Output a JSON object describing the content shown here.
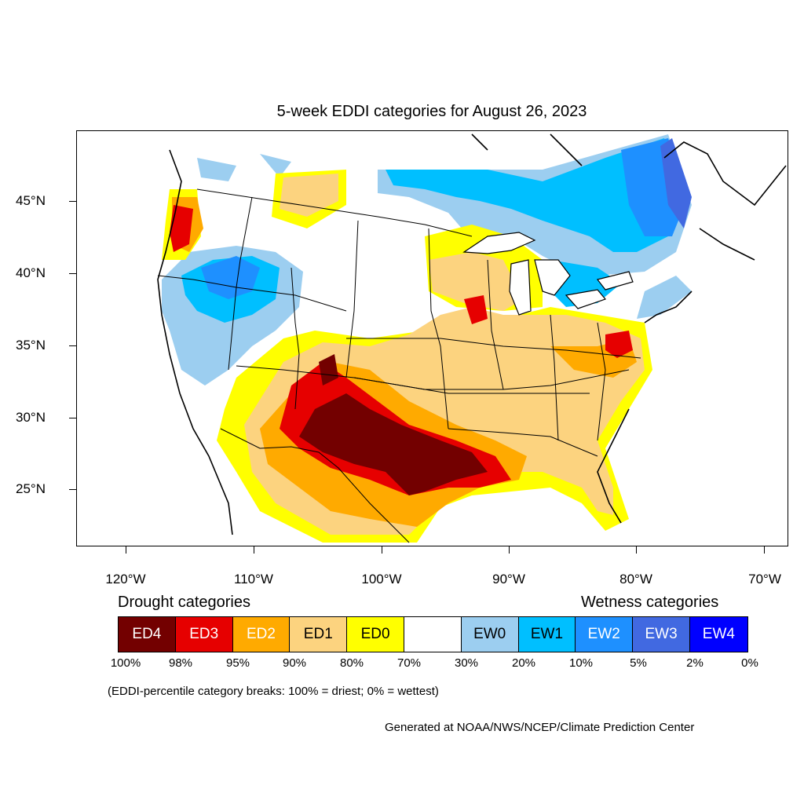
{
  "title": "5-week EDDI categories for August 26, 2023",
  "lat_labels": [
    "45°N",
    "40°N",
    "35°N",
    "30°N",
    "25°N"
  ],
  "lon_labels": [
    "120°W",
    "110°W",
    "100°W",
    "90°W",
    "80°W",
    "70°W"
  ],
  "legend": {
    "drought_heading": "Drought categories",
    "wetness_heading": "Wetness categories",
    "categories": [
      {
        "label": "ED4",
        "color": "#730000",
        "text_color": "#ffffff"
      },
      {
        "label": "ED3",
        "color": "#e60000",
        "text_color": "#ffffff"
      },
      {
        "label": "ED2",
        "color": "#ffaa00",
        "text_color": "#ffffff"
      },
      {
        "label": "ED1",
        "color": "#fcd37f",
        "text_color": "#000000"
      },
      {
        "label": "ED0",
        "color": "#ffff00",
        "text_color": "#000000"
      },
      {
        "label": "",
        "color": "#ffffff",
        "text_color": "#000000"
      },
      {
        "label": "EW0",
        "color": "#9ccef0",
        "text_color": "#000000"
      },
      {
        "label": "EW1",
        "color": "#00bfff",
        "text_color": "#000000"
      },
      {
        "label": "EW2",
        "color": "#1e90ff",
        "text_color": "#ffffff"
      },
      {
        "label": "EW3",
        "color": "#4169e1",
        "text_color": "#ffffff"
      },
      {
        "label": "EW4",
        "color": "#0000ff",
        "text_color": "#ffffff"
      }
    ],
    "percent_breaks": [
      "100%",
      "98%",
      "95%",
      "90%",
      "80%",
      "70%",
      "30%",
      "20%",
      "10%",
      "5%",
      "2%",
      "0%"
    ]
  },
  "note": "(EDDI-percentile category breaks: 100% = driest; 0% = wettest)",
  "credit": "Generated at NOAA/NWS/NCEP/Climate Prediction Center"
}
